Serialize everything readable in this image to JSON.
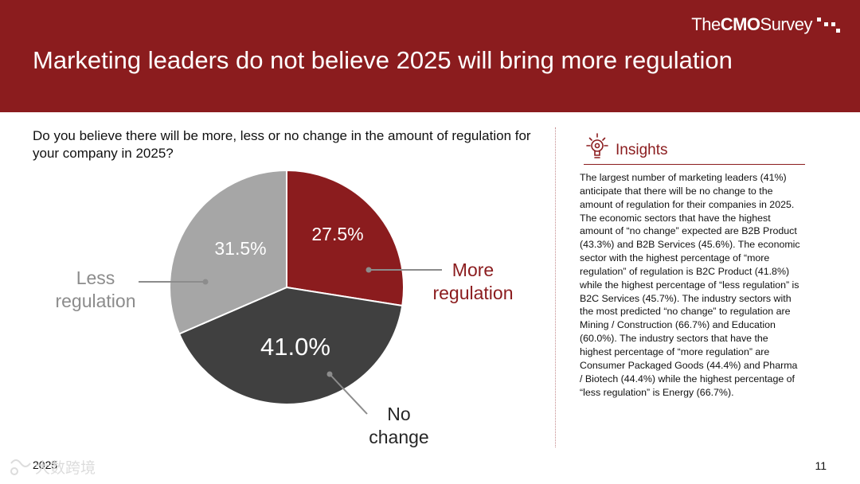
{
  "header": {
    "brand_prefix": "The",
    "brand_bold": "CMO",
    "brand_suffix": "Survey",
    "title": "Marketing leaders do not believe 2025 will bring more regulation"
  },
  "question": "Do you believe there will be more, less or no change in the amount of regulation for your company in 2025?",
  "chart_data": {
    "type": "pie",
    "slices": [
      {
        "label": "More regulation",
        "label_lines": [
          "More",
          "regulation"
        ],
        "value": 27.5,
        "value_label": "27.5%",
        "color": "#8b1c1e",
        "label_color": "#8b1c1e"
      },
      {
        "label": "No change",
        "label_lines": [
          "No",
          "change"
        ],
        "value": 41.0,
        "value_label": "41.0%",
        "color": "#404040",
        "label_color": "#262626"
      },
      {
        "label": "Less regulation",
        "label_lines": [
          "Less",
          "regulation"
        ],
        "value": 31.5,
        "value_label": "31.5%",
        "color": "#a6a6a6",
        "label_color": "#8c8c8c"
      }
    ]
  },
  "insights": {
    "heading": "Insights",
    "body": "The largest number of marketing leaders (41%) anticipate that there will be no change to the amount of regulation for their companies in 2025. The economic sectors that have the highest amount of “no change” expected are B2B Product (43.3%) and B2B Services (45.6%). The economic sector with the highest percentage of “more regulation” of regulation is B2C Product (41.8%) while the highest percentage of “less regulation” is B2C Services (45.7%). The industry sectors with the most predicted “no change” to regulation are Mining / Construction (66.7%) and Education (60.0%). The industry sectors that have the highest percentage of “more regulation” are Consumer Packaged Goods (44.4%) and Pharma / Biotech (44.4%) while the highest percentage of “less regulation” is Energy (66.7%)."
  },
  "footer": {
    "year": "2025",
    "page_number": "11",
    "watermark": "大数跨境"
  },
  "colors": {
    "brand_red": "#8b1c1e",
    "leader_line": "#8c8c8c"
  }
}
